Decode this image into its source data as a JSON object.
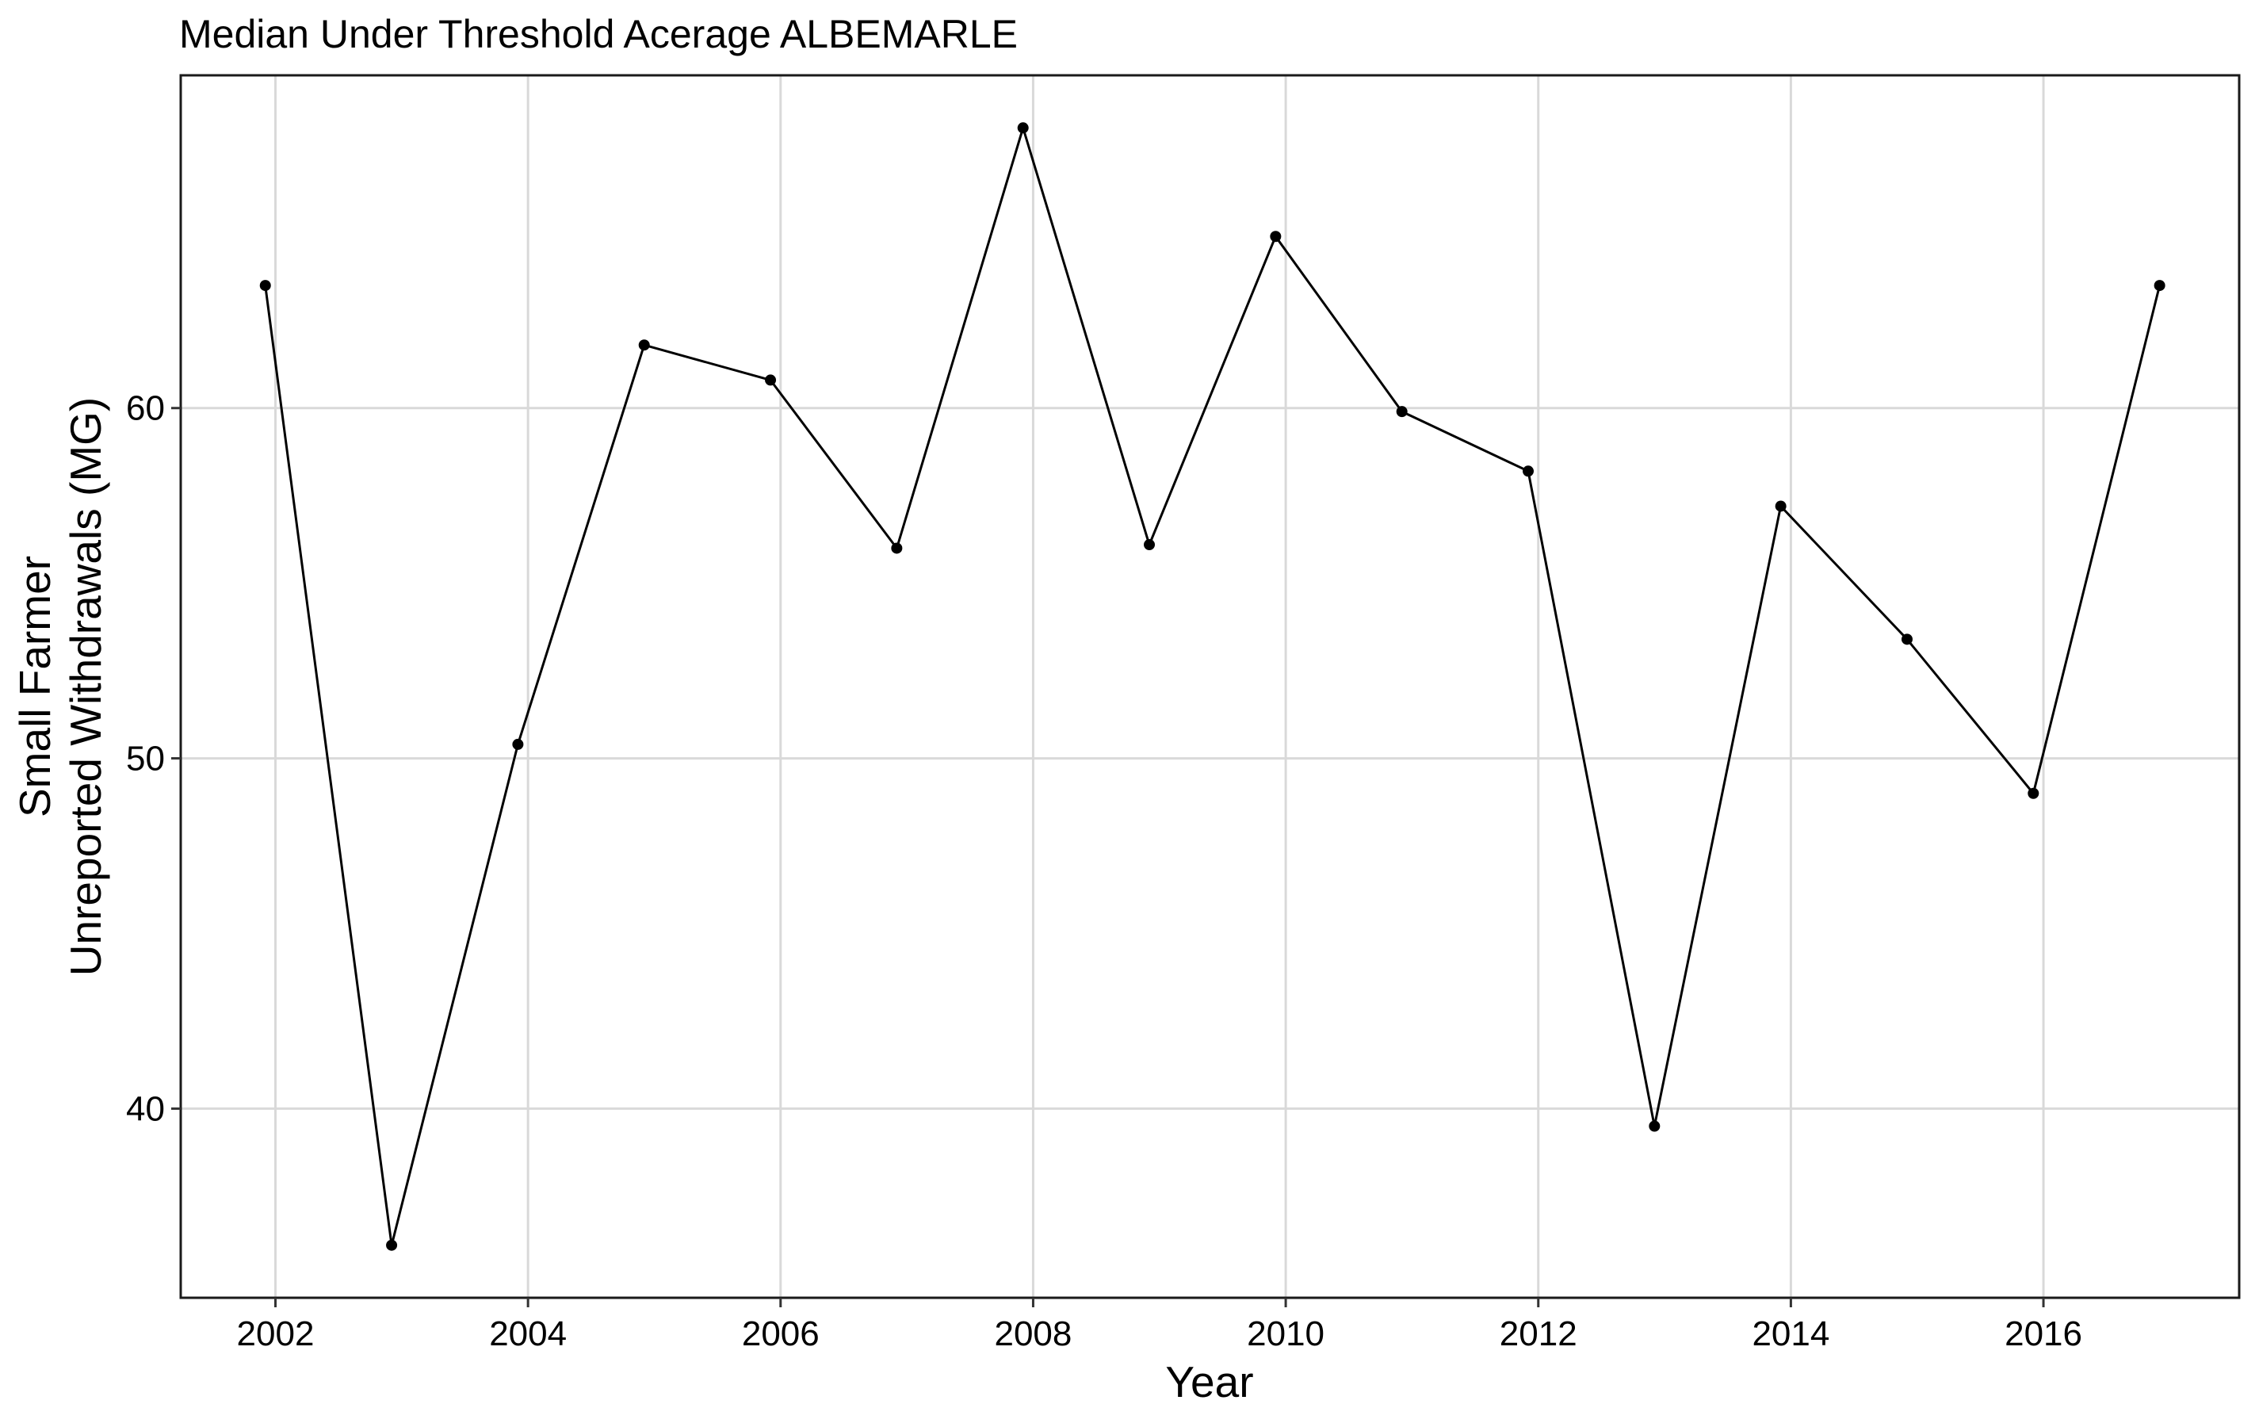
{
  "chart_data": {
    "type": "line",
    "title": "Median Under Threshold Acerage ALBEMARLE",
    "xlabel": "Year",
    "ylabel": [
      "Small Farmer",
      "Unreported Withdrawals (MG)"
    ],
    "xlim": [
      2001.25,
      2017.55
    ],
    "ylim": [
      34.6,
      69.5
    ],
    "xticks": [
      2002,
      2004,
      2006,
      2008,
      2010,
      2012,
      2014,
      2016
    ],
    "xtick_labels": [
      "2002",
      "2004",
      "2006",
      "2008",
      "2010",
      "2012",
      "2014",
      "2016"
    ],
    "yticks": [
      40,
      50,
      60
    ],
    "ytick_labels": [
      "40",
      "50",
      "60"
    ],
    "grid": true,
    "legend": "none",
    "series": [
      {
        "x": [
          2001.92,
          2002.92,
          2003.92,
          2004.92,
          2005.92,
          2006.92,
          2007.92,
          2008.92,
          2009.92,
          2010.92,
          2011.92,
          2012.92,
          2013.92,
          2014.92,
          2015.92,
          2016.92
        ],
        "values": [
          63.5,
          36.1,
          50.4,
          61.8,
          60.8,
          56.0,
          68.0,
          56.1,
          64.9,
          59.9,
          58.2,
          39.5,
          57.2,
          53.4,
          49.0,
          63.5
        ],
        "color": "#000000"
      }
    ]
  }
}
